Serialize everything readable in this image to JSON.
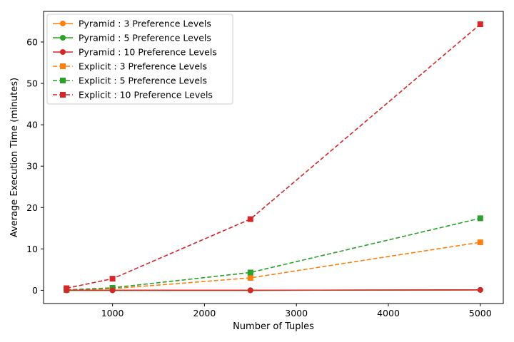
{
  "chart_data": {
    "type": "line",
    "title": "",
    "xlabel": "Number of Tuples",
    "ylabel": "Average Execution Time (minutes)",
    "x": [
      500,
      1000,
      2500,
      5000
    ],
    "xlim": [
      250,
      5250
    ],
    "ylim": [
      -3.2,
      67.4
    ],
    "xticks": [
      1000,
      2000,
      3000,
      4000,
      5000
    ],
    "yticks": [
      0,
      10,
      20,
      30,
      40,
      50,
      60
    ],
    "grid": false,
    "legend_position": "top-left",
    "series": [
      {
        "name": "Pyramid : 3 Preference Levels",
        "color": "#ff7f0e",
        "marker": "circle",
        "linestyle": "solid",
        "values": [
          0.0,
          0.0,
          0.0,
          0.1
        ]
      },
      {
        "name": "Pyramid : 5 Preference Levels",
        "color": "#2ca02c",
        "marker": "circle",
        "linestyle": "solid",
        "values": [
          0.0,
          0.0,
          0.0,
          0.1
        ]
      },
      {
        "name": "Pyramid : 10 Preference Levels",
        "color": "#d62728",
        "marker": "circle",
        "linestyle": "solid",
        "values": [
          0.0,
          0.0,
          0.0,
          0.1
        ]
      },
      {
        "name": "Explicit : 3 Preference Levels",
        "color": "#ff7f0e",
        "marker": "square",
        "linestyle": "dashed",
        "values": [
          0.1,
          0.4,
          3.0,
          11.6
        ]
      },
      {
        "name": "Explicit : 5 Preference Levels",
        "color": "#2ca02c",
        "marker": "square",
        "linestyle": "dashed",
        "values": [
          0.1,
          0.6,
          4.3,
          17.4
        ]
      },
      {
        "name": "Explicit : 10 Preference Levels",
        "color": "#d62728",
        "marker": "square",
        "linestyle": "dashed",
        "values": [
          0.5,
          2.8,
          17.2,
          64.3
        ]
      }
    ]
  }
}
